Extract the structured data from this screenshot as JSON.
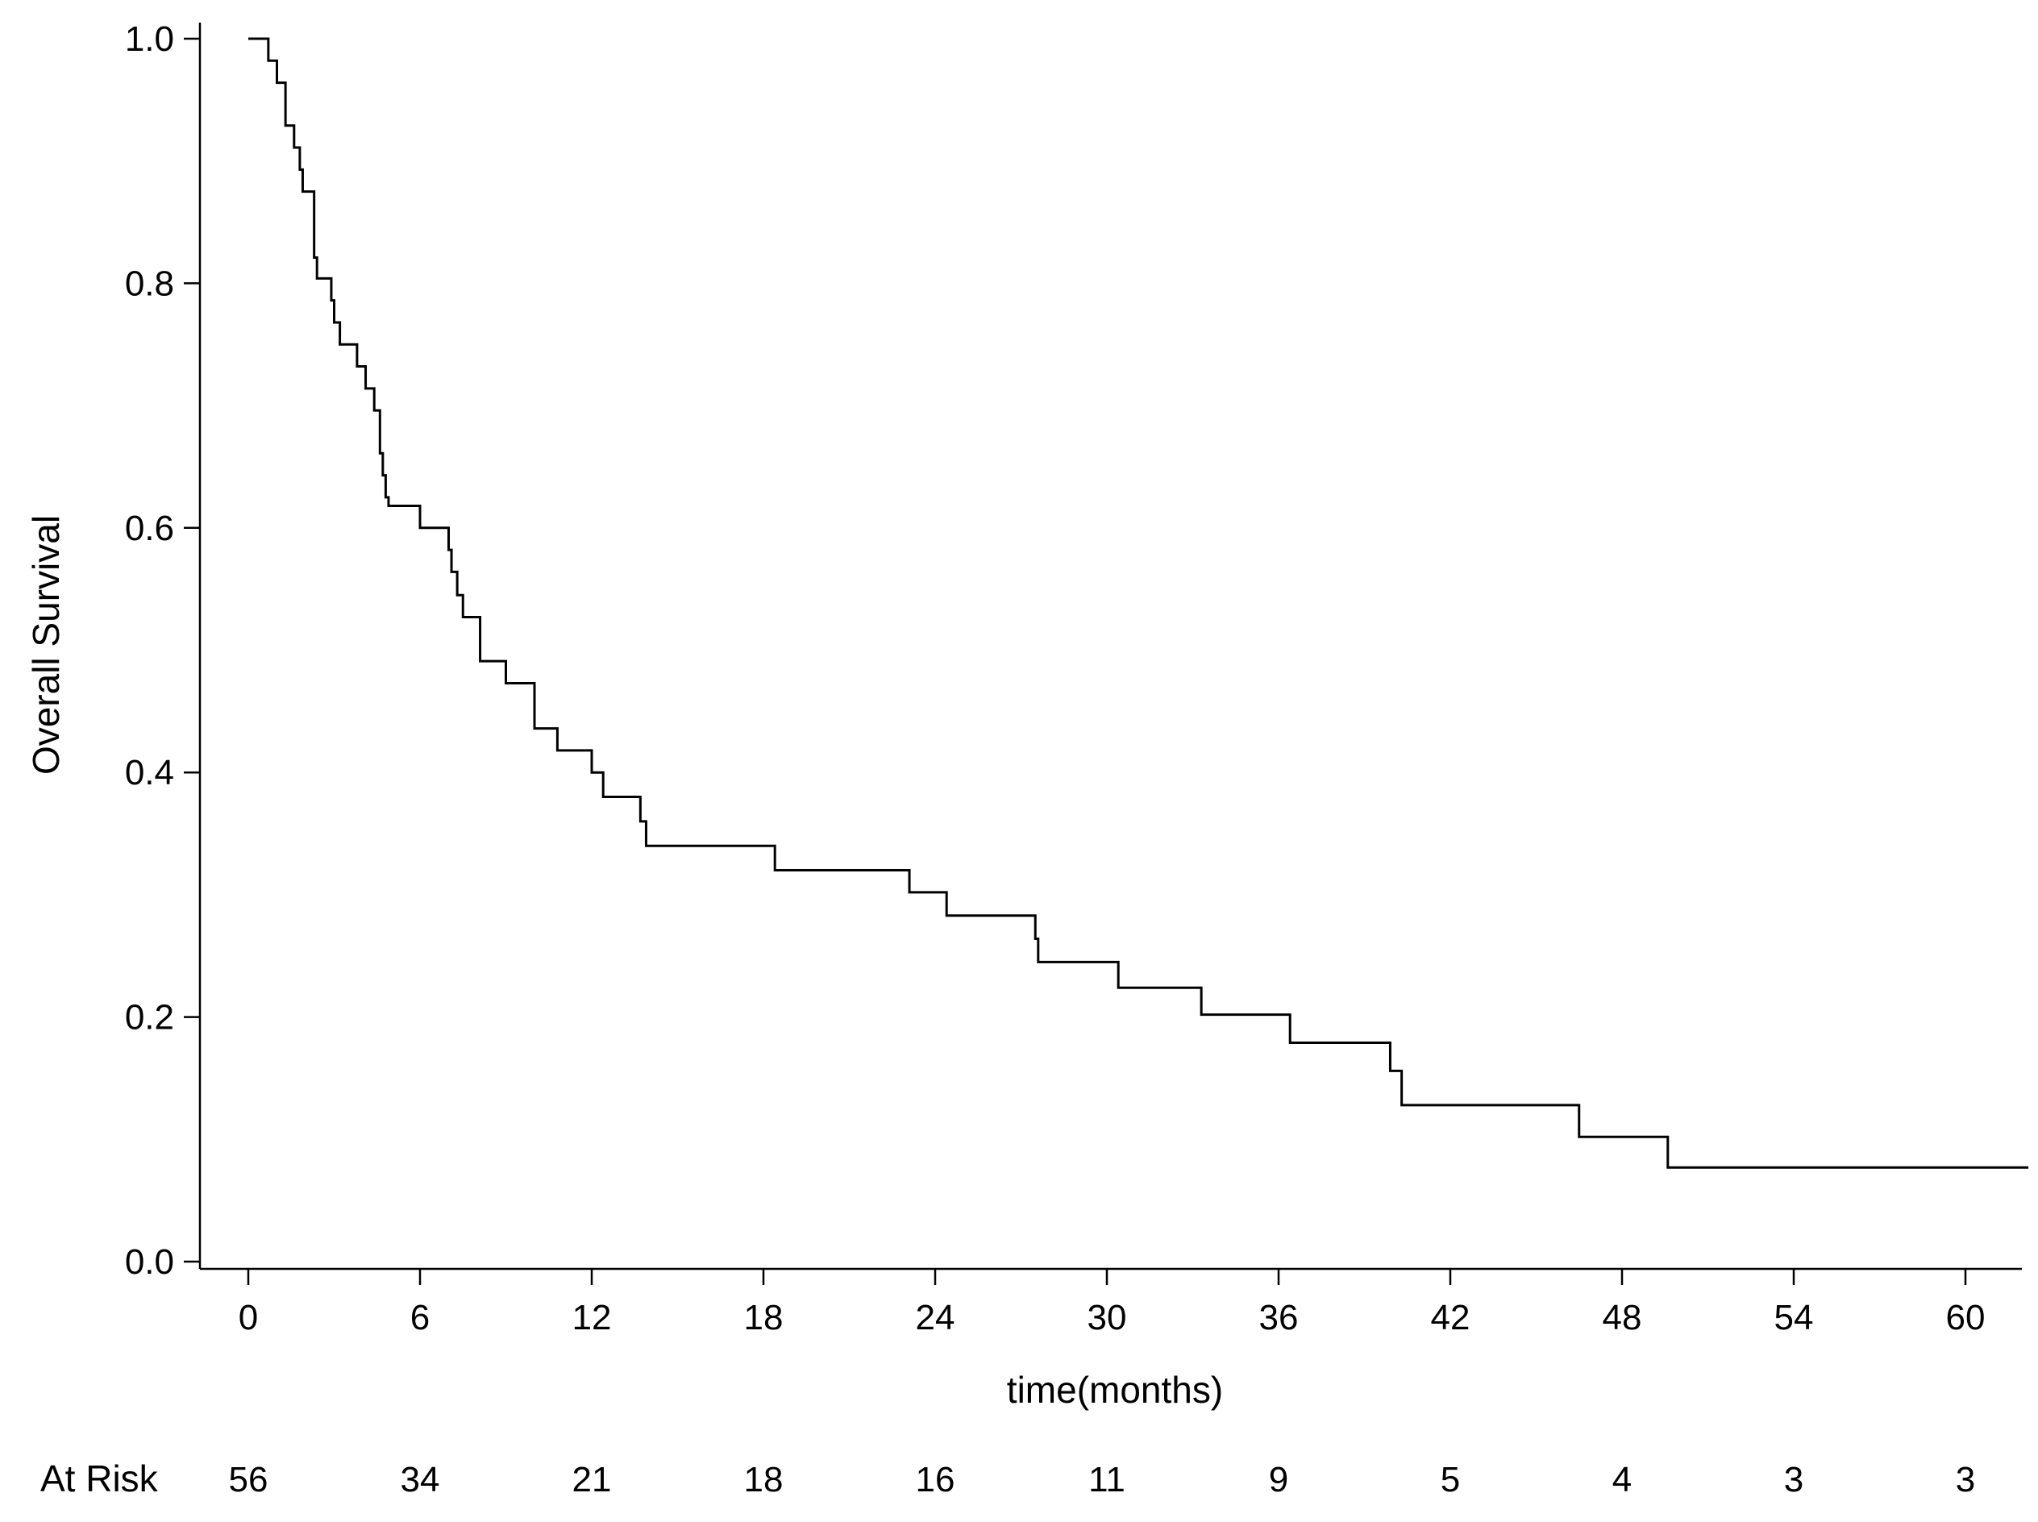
{
  "chart_data": {
    "type": "line",
    "step": true,
    "title": "",
    "xlabel": "time(months)",
    "ylabel": "Overall Survival",
    "xlim": [
      -2.4,
      62.3
    ],
    "ylim": [
      0,
      1.02
    ],
    "x_ticks": [
      0,
      6,
      12,
      18,
      24,
      30,
      36,
      42,
      48,
      54,
      60
    ],
    "x_tick_labels": [
      "0",
      "6",
      "12",
      "18",
      "24",
      "30",
      "36",
      "42",
      "48",
      "54",
      "60"
    ],
    "y_ticks": [
      0,
      0.2,
      0.4,
      0.6,
      0.8,
      1.0
    ],
    "y_tick_labels": [
      "0.0",
      "0.2",
      "0.4",
      "0.6",
      "0.8",
      "1.0"
    ],
    "grid": false,
    "legend": "none",
    "color": "#000000",
    "series": [
      {
        "points": [
          [
            0.0,
            1.0
          ],
          [
            0.7,
            0.982
          ],
          [
            1.0,
            0.964
          ],
          [
            1.3,
            0.929
          ],
          [
            1.6,
            0.911
          ],
          [
            1.8,
            0.893
          ],
          [
            1.9,
            0.875
          ],
          [
            2.3,
            0.821
          ],
          [
            2.4,
            0.804
          ],
          [
            2.9,
            0.786
          ],
          [
            3.0,
            0.768
          ],
          [
            3.2,
            0.75
          ],
          [
            3.8,
            0.732
          ],
          [
            4.1,
            0.714
          ],
          [
            4.4,
            0.696
          ],
          [
            4.6,
            0.661
          ],
          [
            4.7,
            0.643
          ],
          [
            4.8,
            0.625
          ],
          [
            4.9,
            0.618
          ],
          [
            6.0,
            0.6
          ],
          [
            7.0,
            0.582
          ],
          [
            7.1,
            0.564
          ],
          [
            7.3,
            0.545
          ],
          [
            7.5,
            0.527
          ],
          [
            8.1,
            0.491
          ],
          [
            9.0,
            0.473
          ],
          [
            10.0,
            0.436
          ],
          [
            10.8,
            0.418
          ],
          [
            12.0,
            0.4
          ],
          [
            12.4,
            0.38
          ],
          [
            13.7,
            0.36
          ],
          [
            13.9,
            0.34
          ],
          [
            18.4,
            0.32
          ],
          [
            23.1,
            0.302
          ],
          [
            24.4,
            0.283
          ],
          [
            27.5,
            0.264
          ],
          [
            27.6,
            0.245
          ],
          [
            30.4,
            0.224
          ],
          [
            33.3,
            0.202
          ],
          [
            36.4,
            0.179
          ],
          [
            39.9,
            0.156
          ],
          [
            40.3,
            0.128
          ],
          [
            46.5,
            0.102
          ],
          [
            49.6,
            0.077
          ],
          [
            62.2,
            0.077
          ]
        ]
      }
    ],
    "at_risk": {
      "label": "At Risk",
      "times": [
        0,
        6,
        12,
        18,
        24,
        30,
        36,
        42,
        48,
        54,
        60
      ],
      "counts": [
        "56",
        "34",
        "21",
        "18",
        "16",
        "11",
        "9",
        "5",
        "4",
        "3",
        "3"
      ]
    }
  }
}
